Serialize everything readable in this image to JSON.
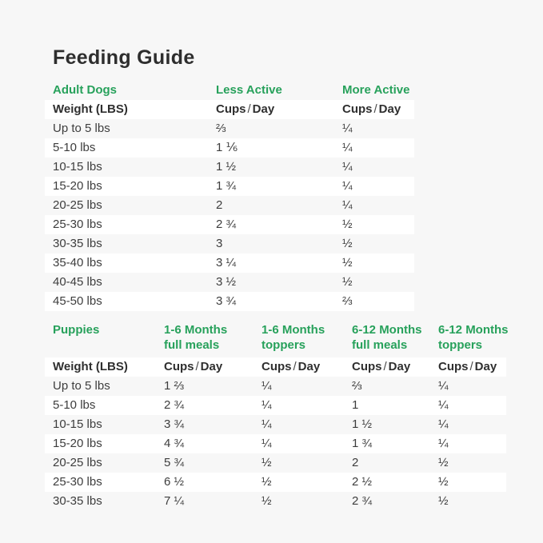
{
  "page": {
    "title": "Feeding Guide",
    "colors": {
      "background": "#f7f7f7",
      "row_stripe": "#ffffff",
      "accent_green": "#27a15b",
      "heading_text": "#2e2e2e",
      "body_text": "#3d3d3d"
    }
  },
  "labels": {
    "weight_header": "Weight (LBS)",
    "cups_label": "Cups",
    "slash": "/",
    "day_label": "Day"
  },
  "adult_table": {
    "section_label": "Adult Dogs",
    "columns": [
      {
        "line1": "Less Active",
        "line2": ""
      },
      {
        "line1": "More Active",
        "line2": ""
      }
    ],
    "rows": [
      {
        "weight": "Up to 5 lbs",
        "less_active": "⅔",
        "more_active": "¼"
      },
      {
        "weight": "5-10 lbs",
        "less_active": "1 ⅙",
        "more_active": "¼"
      },
      {
        "weight": "10-15 lbs",
        "less_active": "1 ½",
        "more_active": "¼"
      },
      {
        "weight": "15-20 lbs",
        "less_active": "1 ¾",
        "more_active": "¼"
      },
      {
        "weight": "20-25 lbs",
        "less_active": "2",
        "more_active": "¼"
      },
      {
        "weight": "25-30 lbs",
        "less_active": "2 ¾",
        "more_active": "½"
      },
      {
        "weight": "30-35 lbs",
        "less_active": "3",
        "more_active": "½"
      },
      {
        "weight": "35-40 lbs",
        "less_active": "3 ¼",
        "more_active": "½"
      },
      {
        "weight": "40-45 lbs",
        "less_active": "3 ½",
        "more_active": "½"
      },
      {
        "weight": "45-50 lbs",
        "less_active": "3 ¾",
        "more_active": "⅔"
      }
    ]
  },
  "puppies_table": {
    "section_label": "Puppies",
    "columns": [
      {
        "line1": "1-6 Months",
        "line2": "full meals"
      },
      {
        "line1": "1-6 Months",
        "line2": "toppers"
      },
      {
        "line1": "6-12 Months",
        "line2": "full meals"
      },
      {
        "line1": "6-12 Months",
        "line2": "toppers"
      }
    ],
    "rows": [
      {
        "weight": "Up to 5 lbs",
        "full_1_6": "1 ⅔",
        "toppers_1_6": "¼",
        "full_6_12": "⅔",
        "toppers_6_12": "¼"
      },
      {
        "weight": "5-10 lbs",
        "full_1_6": "2 ¾",
        "toppers_1_6": "¼",
        "full_6_12": "1",
        "toppers_6_12": "¼"
      },
      {
        "weight": "10-15 lbs",
        "full_1_6": "3 ¾",
        "toppers_1_6": "¼",
        "full_6_12": "1 ½",
        "toppers_6_12": "¼"
      },
      {
        "weight": "15-20 lbs",
        "full_1_6": "4 ¾",
        "toppers_1_6": "¼",
        "full_6_12": "1 ¾",
        "toppers_6_12": "¼"
      },
      {
        "weight": "20-25 lbs",
        "full_1_6": "5 ¾",
        "toppers_1_6": "½",
        "full_6_12": "2",
        "toppers_6_12": "½"
      },
      {
        "weight": "25-30 lbs",
        "full_1_6": "6 ½",
        "toppers_1_6": "½",
        "full_6_12": "2 ½",
        "toppers_6_12": "½"
      },
      {
        "weight": "30-35 lbs",
        "full_1_6": "7 ¼",
        "toppers_1_6": "½",
        "full_6_12": "2 ¾",
        "toppers_6_12": "½"
      }
    ]
  }
}
